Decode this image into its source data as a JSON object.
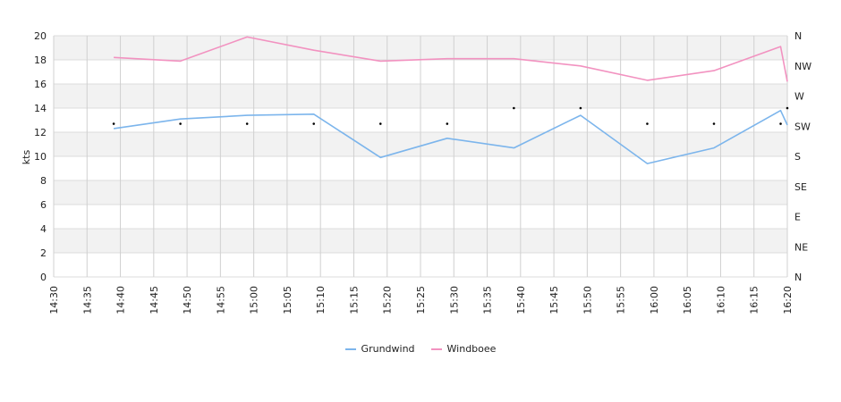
{
  "chart_data": {
    "type": "line",
    "ylabel": "kts",
    "ylim": [
      0,
      20
    ],
    "yticks": [
      "0",
      "2",
      "4",
      "6",
      "8",
      "10",
      "12",
      "14",
      "16",
      "18",
      "20"
    ],
    "x_ticks": [
      "14:30",
      "14:35",
      "14:40",
      "14:45",
      "14:50",
      "14:55",
      "15:00",
      "15:05",
      "15:10",
      "15:15",
      "15:20",
      "15:25",
      "15:30",
      "15:35",
      "15:40",
      "15:45",
      "15:50",
      "15:55",
      "16:00",
      "16:05",
      "16:10",
      "16:15",
      "16:20"
    ],
    "right_axis_labels": [
      "N",
      "NE",
      "E",
      "SE",
      "S",
      "SW",
      "W",
      "NW",
      "N"
    ],
    "grid": true,
    "legend_position": "bottom",
    "series": [
      {
        "name": "Grundwind",
        "color": "#7cb5ec",
        "x": [
          "14:39",
          "14:49",
          "14:59",
          "15:09",
          "15:19",
          "15:29",
          "15:39",
          "15:49",
          "15:59",
          "16:09",
          "16:19",
          "16:20"
        ],
        "values": [
          12.3,
          13.1,
          13.4,
          13.5,
          9.9,
          11.5,
          10.7,
          13.4,
          9.4,
          10.7,
          13.8,
          12.6
        ]
      },
      {
        "name": "Windboee",
        "color": "#f292c0",
        "x": [
          "14:39",
          "14:49",
          "14:59",
          "15:09",
          "15:19",
          "15:29",
          "15:39",
          "15:49",
          "15:59",
          "16:09",
          "16:19",
          "16:20"
        ],
        "values": [
          18.2,
          17.9,
          19.9,
          18.8,
          17.9,
          18.1,
          18.1,
          17.5,
          16.3,
          17.1,
          19.1,
          16.2
        ]
      }
    ],
    "direction_markers": {
      "color": "#000000",
      "x": [
        "14:39",
        "14:49",
        "14:59",
        "15:09",
        "15:19",
        "15:29",
        "15:39",
        "15:49",
        "15:59",
        "16:09",
        "16:19",
        "16:20"
      ],
      "values": [
        12.7,
        12.7,
        12.7,
        12.7,
        12.7,
        12.7,
        14.0,
        14.0,
        12.7,
        12.7,
        12.7,
        14.0
      ]
    }
  }
}
